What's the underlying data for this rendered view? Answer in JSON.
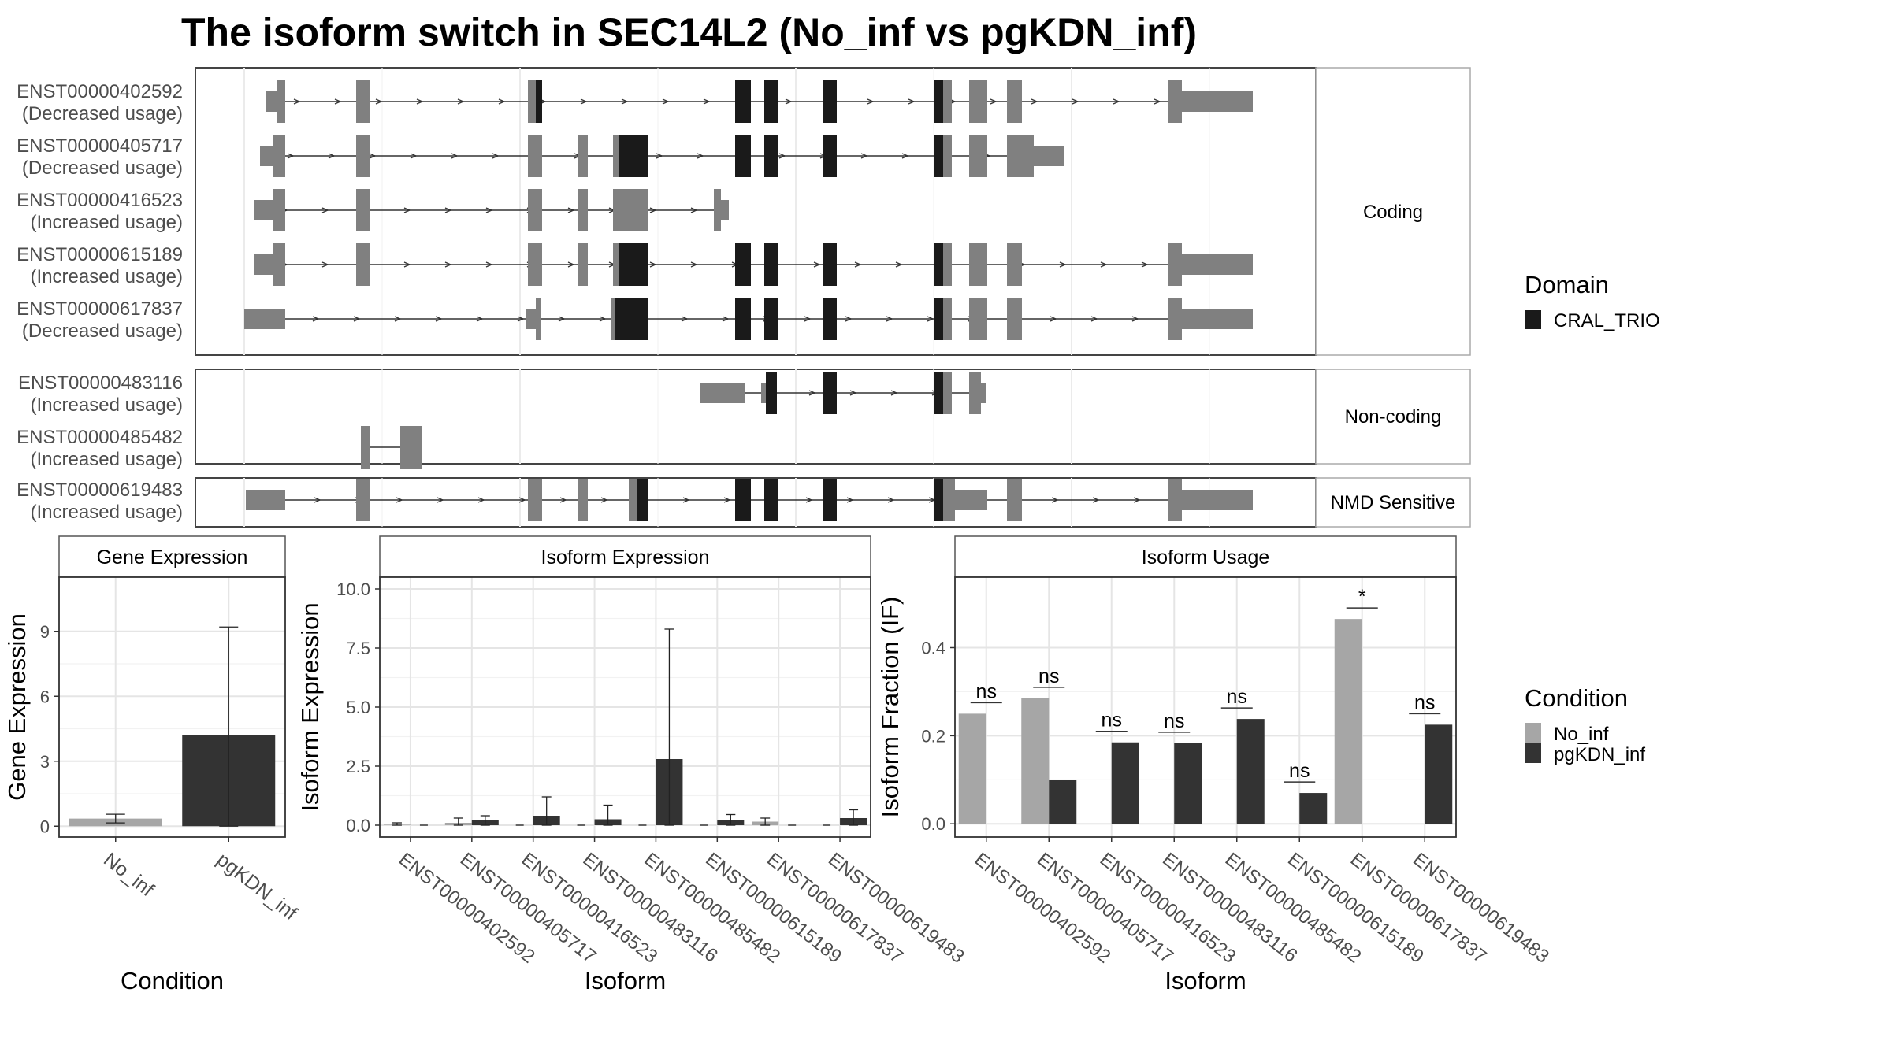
{
  "title": "The isoform switch in SEC14L2 (No_inf vs pgKDN_inf)",
  "legend_domain": {
    "title": "Domain",
    "items": [
      {
        "label": "CRAL_TRIO",
        "color": "#1a1a1a"
      }
    ]
  },
  "legend_condition": {
    "title": "Condition",
    "items": [
      {
        "label": "No_inf",
        "color": "#a6a6a6"
      },
      {
        "label": "pgKDN_inf",
        "color": "#333333"
      }
    ]
  },
  "colors": {
    "exon": "#808080",
    "domain": "#1a1a1a",
    "no_inf": "#a6a6a6",
    "pgkdn_inf": "#333333"
  },
  "transcript_groups": [
    {
      "label": "Coding",
      "transcripts": [
        {
          "id": "ENST00000402592",
          "usage": "(Decreased usage)"
        },
        {
          "id": "ENST00000405717",
          "usage": "(Decreased usage)"
        },
        {
          "id": "ENST00000416523",
          "usage": "(Increased usage)"
        },
        {
          "id": "ENST00000615189",
          "usage": "(Increased usage)"
        },
        {
          "id": "ENST00000617837",
          "usage": "(Decreased usage)"
        }
      ]
    },
    {
      "label": "Non-coding",
      "transcripts": [
        {
          "id": "ENST00000483116",
          "usage": "(Increased usage)"
        },
        {
          "id": "ENST00000485482",
          "usage": "(Increased usage)"
        }
      ]
    },
    {
      "label": "NMD Sensitive",
      "transcripts": [
        {
          "id": "ENST00000619483",
          "usage": "(Increased usage)"
        }
      ]
    }
  ],
  "chart_data": [
    {
      "type": "bar",
      "title": "Gene Expression",
      "xlabel": "Condition",
      "ylabel": "Gene Expression",
      "categories": [
        "No_inf",
        "pgKDN_inf"
      ],
      "values": [
        0.35,
        4.2
      ],
      "error_low": [
        0.15,
        0.0
      ],
      "error_high": [
        0.55,
        9.2
      ],
      "ylim": [
        -0.5,
        11.5
      ],
      "yticks": [
        0,
        3,
        6,
        9
      ],
      "ytick_labels": [
        "0",
        "3",
        "6",
        "9"
      ]
    },
    {
      "type": "bar",
      "title": "Isoform Expression",
      "xlabel": "Isoform",
      "ylabel": "Isoform Expression",
      "categories": [
        "ENST00000402592",
        "ENST00000405717",
        "ENST00000416523",
        "ENST00000483116",
        "ENST00000485482",
        "ENST00000615189",
        "ENST00000617837",
        "ENST00000619483"
      ],
      "series": [
        {
          "name": "No_inf",
          "values": [
            0.02,
            0.1,
            0.0,
            0.0,
            0.0,
            0.0,
            0.15,
            0.0
          ],
          "error_low": [
            0.0,
            0.0,
            0.0,
            0.0,
            0.0,
            0.0,
            0.0,
            0.0
          ],
          "error_high": [
            0.1,
            0.3,
            0.0,
            0.0,
            0.0,
            0.0,
            0.3,
            0.0
          ]
        },
        {
          "name": "pgKDN_inf",
          "values": [
            0.0,
            0.2,
            0.4,
            0.25,
            2.8,
            0.2,
            0.0,
            0.3
          ],
          "error_low": [
            0.0,
            0.0,
            0.0,
            0.0,
            0.0,
            0.0,
            0.0,
            0.0
          ],
          "error_high": [
            0.0,
            0.4,
            1.2,
            0.85,
            8.3,
            0.45,
            0.0,
            0.65
          ]
        }
      ],
      "ylim": [
        -0.5,
        10.5
      ],
      "yticks": [
        0,
        2.5,
        5,
        7.5,
        10
      ],
      "ytick_labels": [
        "0.0",
        "2.5",
        "5.0",
        "7.5",
        "10.0"
      ]
    },
    {
      "type": "bar",
      "title": "Isoform Usage",
      "xlabel": "Isoform",
      "ylabel": "Isoform Fraction (IF)",
      "categories": [
        "ENST00000402592",
        "ENST00000405717",
        "ENST00000416523",
        "ENST00000483116",
        "ENST00000485482",
        "ENST00000615189",
        "ENST00000617837",
        "ENST00000619483"
      ],
      "series": [
        {
          "name": "No_inf",
          "values": [
            0.25,
            0.285,
            0.0,
            0.0,
            0.0,
            0.0,
            0.465,
            0.0
          ]
        },
        {
          "name": "pgKDN_inf",
          "values": [
            0.0,
            0.1,
            0.185,
            0.183,
            0.238,
            0.07,
            0.0,
            0.225
          ]
        }
      ],
      "significance": [
        "ns",
        "ns",
        "ns",
        "ns",
        "ns",
        "ns",
        "*",
        "ns"
      ],
      "ylim": [
        -0.03,
        0.56
      ],
      "yticks": [
        0,
        0.2,
        0.4
      ],
      "ytick_labels": [
        "0.0",
        "0.2",
        "0.4"
      ]
    }
  ]
}
